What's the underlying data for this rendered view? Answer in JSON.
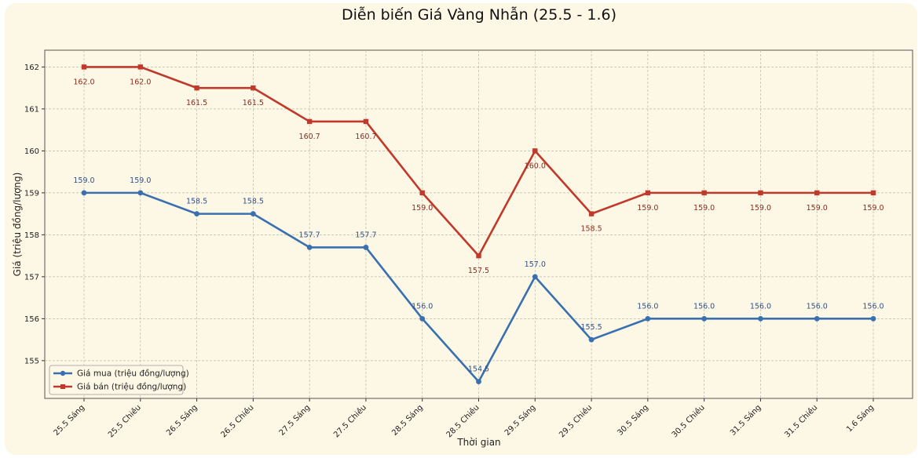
{
  "chart_data": {
    "type": "line",
    "title": "Diễn biến Giá Vàng Nhẫn (25.5 - 1.6)",
    "xlabel": "Thời gian",
    "ylabel": "Giá (triệu đồng/lượng)",
    "ylim": [
      154.1,
      162.4
    ],
    "yticks": [
      155,
      156,
      157,
      158,
      159,
      160,
      161,
      162
    ],
    "grid": true,
    "legend_position": "bottom-left",
    "categories": [
      "25.5 Sáng",
      "25.5 Chiều",
      "26.5 Sáng",
      "26.5 Chiều",
      "27.5 Sáng",
      "27.5 Chiều",
      "28.5 Sáng",
      "28.5 Chiều",
      "29.5 Sáng",
      "29.5 Chiều",
      "30.5 Sáng",
      "30.5 Chiều",
      "31.5 Sáng",
      "31.5 Chiều",
      "1.6 Sáng"
    ],
    "series": [
      {
        "name": "Giá mua (triệu đồng/lượng)",
        "color": "#3a70b0",
        "marker": "circle",
        "label_position": "above",
        "values": [
          159.0,
          159.0,
          158.5,
          158.5,
          157.7,
          157.7,
          156.0,
          154.5,
          157.0,
          155.5,
          156.0,
          156.0,
          156.0,
          156.0,
          156.0
        ]
      },
      {
        "name": "Giá bán (triệu đồng/lượng)",
        "color": "#c0392b",
        "marker": "square",
        "label_position": "below",
        "values": [
          162.0,
          162.0,
          161.5,
          161.5,
          160.7,
          160.7,
          159.0,
          157.5,
          160.0,
          158.5,
          159.0,
          159.0,
          159.0,
          159.0,
          159.0
        ]
      }
    ]
  }
}
